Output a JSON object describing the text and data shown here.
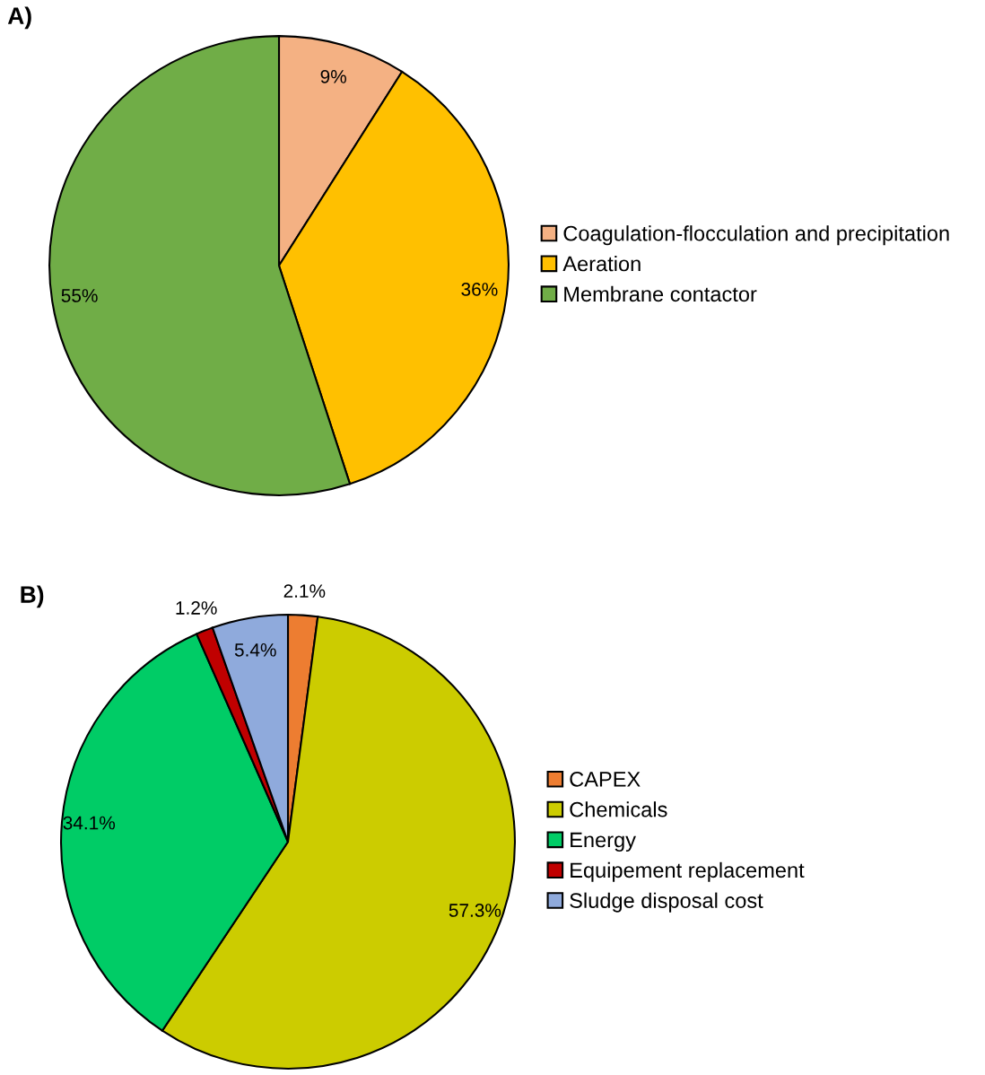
{
  "chart_data": [
    {
      "type": "pie",
      "title": "A)",
      "categories": [
        "Coagulation-flocculation and precipitation",
        "Aeration",
        "Membrane contactor"
      ],
      "values": [
        9,
        36,
        55
      ],
      "colors": [
        "#f4b183",
        "#ffc000",
        "#70ad47"
      ],
      "value_labels": [
        "9%",
        "36%",
        "55%"
      ],
      "legend": "right"
    },
    {
      "type": "pie",
      "title": "B)",
      "categories": [
        "CAPEX",
        "Chemicals",
        "Energy",
        "Equipement replacement",
        "Sludge disposal cost"
      ],
      "values": [
        2.1,
        57.3,
        34.1,
        1.2,
        5.4
      ],
      "colors": [
        "#ed7d31",
        "#cccc00",
        "#00cc66",
        "#c00000",
        "#8faadc"
      ],
      "value_labels": [
        "2.1%",
        "57.3%",
        "34.1%",
        "1.2%",
        "5.4%"
      ],
      "legend": "right"
    }
  ]
}
